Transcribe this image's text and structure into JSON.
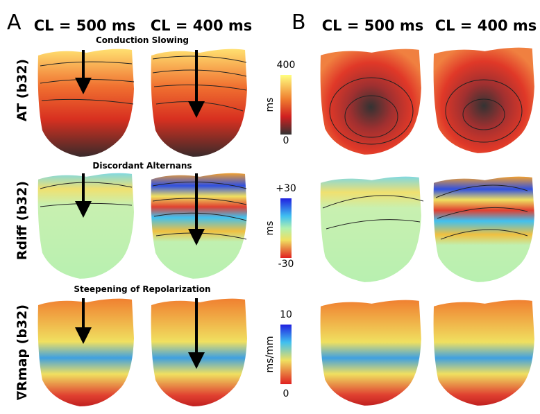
{
  "panels": [
    {
      "label": "A",
      "columns": [
        "CL = 500 ms",
        "CL = 400 ms"
      ]
    },
    {
      "label": "B",
      "columns": [
        "CL = 500 ms",
        "CL = 400 ms"
      ]
    }
  ],
  "rows": [
    {
      "label": "AT (b32)",
      "annotation": "Conduction Slowing",
      "colorbar": {
        "max": "400",
        "unit": "ms",
        "min": "0"
      }
    },
    {
      "label": "Rdiff (b32)",
      "annotation": "Discordant Alternans",
      "colorbar": {
        "max": "+30",
        "unit": "ms",
        "min": "-30"
      }
    },
    {
      "label": "∇Rmap (b32)",
      "annotation": "Steepening of Repolarization",
      "colorbar": {
        "max": "10",
        "unit": "ms/mm",
        "min": "0"
      }
    }
  ]
}
